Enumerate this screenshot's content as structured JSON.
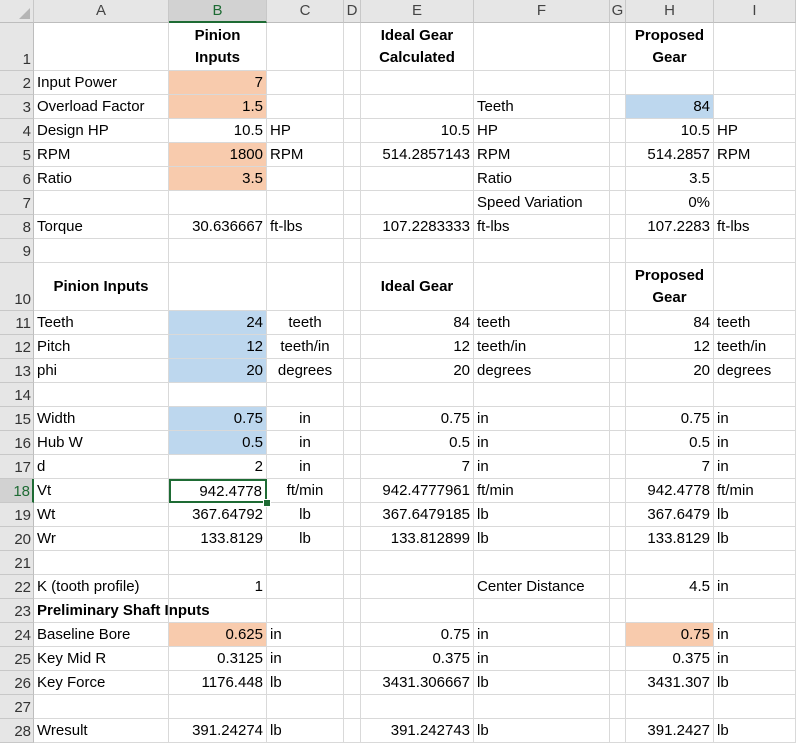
{
  "columns": [
    "A",
    "B",
    "C",
    "D",
    "E",
    "F",
    "G",
    "H",
    "I"
  ],
  "selected_cell": "B18",
  "rows": [
    "1",
    "2",
    "3",
    "4",
    "5",
    "6",
    "7",
    "8",
    "9",
    "10",
    "11",
    "12",
    "13",
    "14",
    "15",
    "16",
    "17",
    "18",
    "19",
    "20",
    "21",
    "22",
    "23",
    "24",
    "25",
    "26",
    "27",
    "28"
  ],
  "colors": {
    "input_orange": "#f8cbad",
    "input_blue": "#bdd7ee",
    "selection_green": "#1e6b34"
  },
  "cells": {
    "B1": [
      "Pinion",
      "Inputs"
    ],
    "E1": [
      "Ideal Gear",
      "Calculated"
    ],
    "H1": [
      "Proposed",
      "Gear"
    ],
    "A2": "Input Power",
    "B2": "7",
    "A3": "Overload Factor",
    "B3": "1.5",
    "F3": "Teeth",
    "H3": "84",
    "A4": "Design HP",
    "B4": "10.5",
    "C4": "HP",
    "E4": "10.5",
    "F4": "HP",
    "H4": "10.5",
    "I4": "HP",
    "A5": "RPM",
    "B5": "1800",
    "C5": "RPM",
    "E5": "514.2857143",
    "F5": "RPM",
    "H5": "514.2857",
    "I5": "RPM",
    "A6": "Ratio",
    "B6": "3.5",
    "F6": "Ratio",
    "H6": "3.5",
    "F7": "Speed Variation",
    "H7": "0%",
    "A8": "Torque",
    "B8": "30.636667",
    "C8": "ft-lbs",
    "E8": "107.2283333",
    "F8": "ft-lbs",
    "H8": "107.2283",
    "I8": "ft-lbs",
    "A10": "Pinion Inputs",
    "E10": "Ideal Gear",
    "H10": [
      "Proposed",
      "Gear"
    ],
    "A11": "Teeth",
    "B11": "24",
    "C11": "teeth",
    "E11": "84",
    "F11": "teeth",
    "H11": "84",
    "I11": "teeth",
    "A12": "Pitch",
    "B12": "12",
    "C12": "teeth/in",
    "E12": "12",
    "F12": "teeth/in",
    "H12": "12",
    "I12": "teeth/in",
    "A13": "phi",
    "B13": "20",
    "C13": "degrees",
    "E13": "20",
    "F13": "degrees",
    "H13": "20",
    "I13": "degrees",
    "A15": "Width",
    "B15": "0.75",
    "C15": "in",
    "E15": "0.75",
    "F15": "in",
    "H15": "0.75",
    "I15": "in",
    "A16": "Hub W",
    "B16": "0.5",
    "C16": "in",
    "E16": "0.5",
    "F16": "in",
    "H16": "0.5",
    "I16": "in",
    "A17": "d",
    "B17": "2",
    "C17": "in",
    "E17": "7",
    "F17": "in",
    "H17": "7",
    "I17": "in",
    "A18": "Vt",
    "B18": "942.4778",
    "C18": "ft/min",
    "E18": "942.4777961",
    "F18": "ft/min",
    "H18": "942.4778",
    "I18": "ft/min",
    "A19": "Wt",
    "B19": "367.64792",
    "C19": "lb",
    "E19": "367.6479185",
    "F19": "lb",
    "H19": "367.6479",
    "I19": "lb",
    "A20": "Wr",
    "B20": "133.8129",
    "C20": "lb",
    "E20": "133.812899",
    "F20": "lb",
    "H20": "133.8129",
    "I20": "lb",
    "A22": "K (tooth profile)",
    "B22": "1",
    "F22": "Center Distance",
    "H22": "4.5",
    "I22": "in",
    "A23": "Preliminary Shaft Inputs",
    "A24": "Baseline Bore",
    "B24": "0.625",
    "C24": "in",
    "E24": "0.75",
    "F24": "in",
    "H24": "0.75",
    "I24": "in",
    "A25": "Key Mid R",
    "B25": "0.3125",
    "C25": "in",
    "E25": "0.375",
    "F25": "in",
    "H25": "0.375",
    "I25": "in",
    "A26": "Key Force",
    "B26": "1176.448",
    "C26": "lb",
    "E26": "3431.306667",
    "F26": "lb",
    "H26": "3431.307",
    "I26": "lb",
    "A28": "Wresult",
    "B28": "391.24274",
    "C28": "lb",
    "E28": "391.242743",
    "F28": "lb",
    "H28": "391.2427",
    "I28": "lb"
  }
}
